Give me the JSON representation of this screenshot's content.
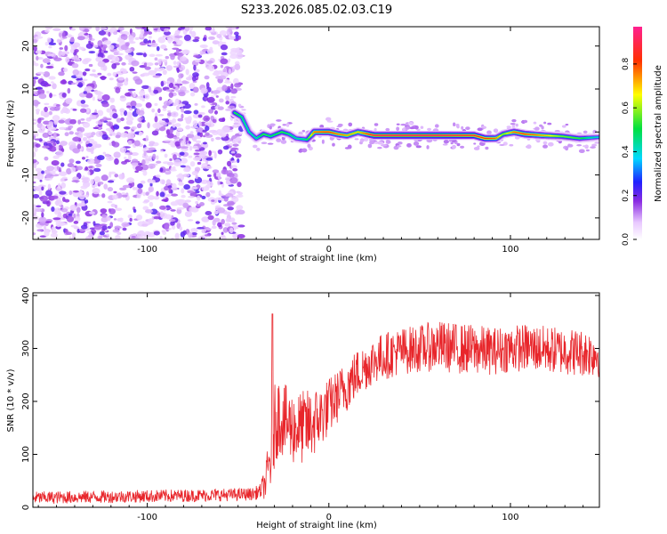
{
  "title": "S233.2026.085.02.03.C19",
  "chart_data": [
    {
      "type": "heatmap",
      "title": "S233.2026.085.02.03.C19",
      "xlabel": "Height of straight line (km)",
      "ylabel": "Frequency (Hz)",
      "xlim": [
        -163,
        149
      ],
      "ylim": [
        -25,
        24.5
      ],
      "x_ticks": [
        -100,
        0,
        100
      ],
      "y_ticks": [
        -20,
        -10,
        0,
        10,
        20
      ],
      "colorbar": {
        "label": "Normalized spectral amplitude",
        "range": [
          0,
          0.97
        ],
        "ticks": [
          0.0,
          0.2,
          0.4,
          0.6,
          0.8
        ]
      },
      "noise_region_x": [
        -163,
        -53
      ],
      "ridge": [
        {
          "x": -52,
          "f": 4.5,
          "a": 0.55
        },
        {
          "x": -48,
          "f": 3.5,
          "a": 0.5
        },
        {
          "x": -44,
          "f": 0.0,
          "a": 0.45
        },
        {
          "x": -40,
          "f": -1.5,
          "a": 0.45
        },
        {
          "x": -36,
          "f": -0.5,
          "a": 0.55
        },
        {
          "x": -32,
          "f": -1.0,
          "a": 0.5
        },
        {
          "x": -26,
          "f": 0.0,
          "a": 0.55
        },
        {
          "x": -22,
          "f": -0.5,
          "a": 0.5
        },
        {
          "x": -18,
          "f": -1.5,
          "a": 0.45
        },
        {
          "x": -12,
          "f": -1.8,
          "a": 0.5
        },
        {
          "x": -8,
          "f": 0.0,
          "a": 0.8
        },
        {
          "x": 0,
          "f": 0.0,
          "a": 0.85
        },
        {
          "x": 5,
          "f": -0.5,
          "a": 0.8
        },
        {
          "x": 10,
          "f": -0.8,
          "a": 0.75
        },
        {
          "x": 16,
          "f": 0.0,
          "a": 0.7
        },
        {
          "x": 25,
          "f": -0.8,
          "a": 0.95
        },
        {
          "x": 40,
          "f": -0.8,
          "a": 0.97
        },
        {
          "x": 60,
          "f": -0.8,
          "a": 0.97
        },
        {
          "x": 80,
          "f": -0.8,
          "a": 0.9
        },
        {
          "x": 86,
          "f": -1.5,
          "a": 0.85
        },
        {
          "x": 92,
          "f": -1.5,
          "a": 0.8
        },
        {
          "x": 96,
          "f": -0.5,
          "a": 0.6
        },
        {
          "x": 102,
          "f": 0.0,
          "a": 0.8
        },
        {
          "x": 108,
          "f": -0.5,
          "a": 0.85
        },
        {
          "x": 118,
          "f": -0.8,
          "a": 0.75
        },
        {
          "x": 128,
          "f": -1.0,
          "a": 0.6
        },
        {
          "x": 138,
          "f": -1.5,
          "a": 0.55
        },
        {
          "x": 149,
          "f": -1.2,
          "a": 0.4
        }
      ]
    },
    {
      "type": "line",
      "xlabel": "Height of straight line (km)",
      "ylabel": "SNR (10 * v/v)",
      "xlim": [
        -163,
        149
      ],
      "ylim": [
        0,
        405
      ],
      "x_ticks": [
        -100,
        0,
        100
      ],
      "y_ticks": [
        0,
        100,
        200,
        300,
        400
      ],
      "series": [
        {
          "name": "SNR",
          "color": "#e8262b",
          "x": [
            -163,
            -120,
            -80,
            -50,
            -42,
            -38,
            -35,
            -32,
            -30,
            -28,
            -25,
            -20,
            -15,
            -10,
            -5,
            0,
            5,
            10,
            15,
            20,
            25,
            30,
            40,
            50,
            60,
            70,
            80,
            90,
            100,
            110,
            120,
            130,
            140,
            149
          ],
          "y": [
            18,
            20,
            22,
            24,
            25,
            30,
            45,
            95,
            150,
            175,
            165,
            150,
            150,
            155,
            170,
            190,
            210,
            230,
            250,
            265,
            278,
            285,
            295,
            300,
            305,
            300,
            298,
            295,
            300,
            302,
            298,
            295,
            292,
            290
          ],
          "amplitude": [
            12,
            12,
            12,
            12,
            12,
            14,
            30,
            70,
            80,
            75,
            70,
            70,
            70,
            70,
            60,
            55,
            50,
            50,
            48,
            45,
            45,
            45,
            45,
            45,
            48,
            48,
            48,
            45,
            45,
            45,
            45,
            45,
            45,
            45
          ]
        }
      ]
    }
  ]
}
